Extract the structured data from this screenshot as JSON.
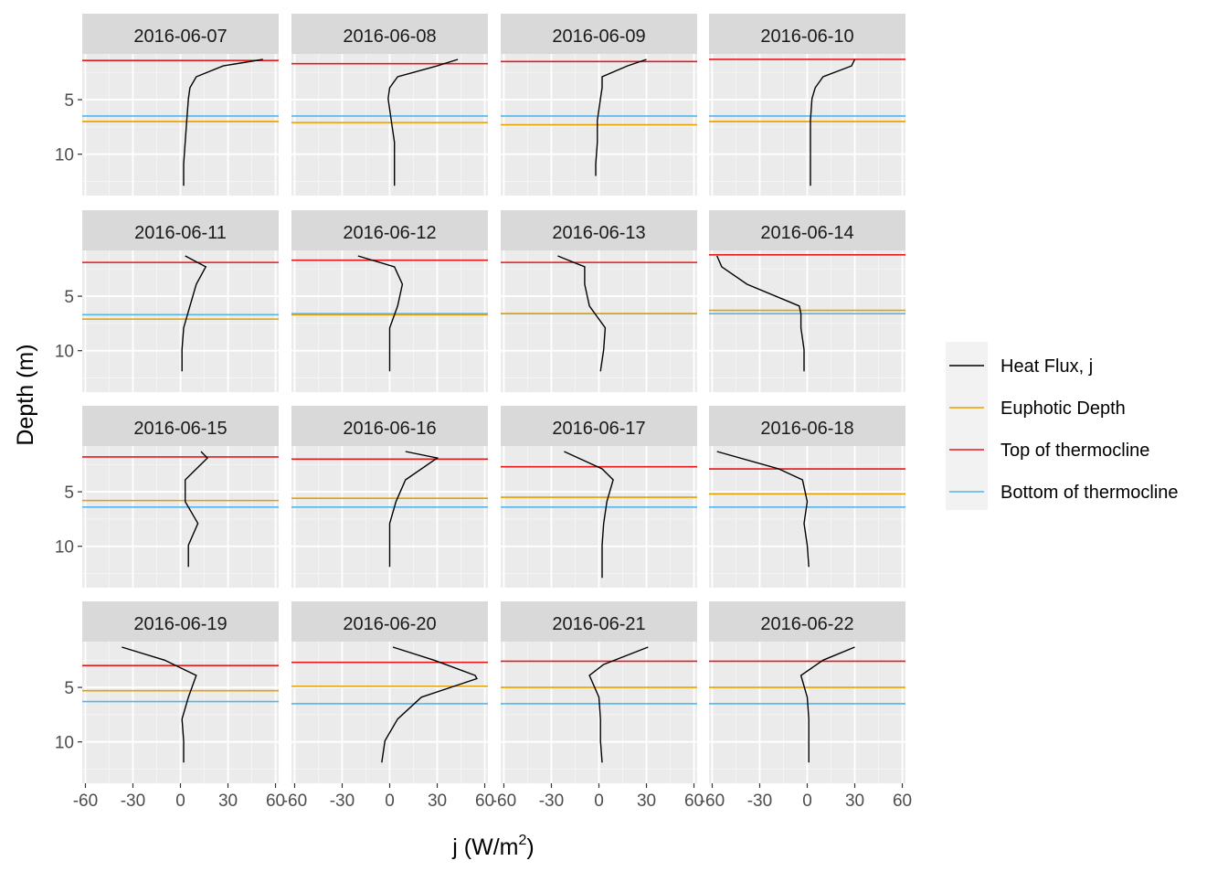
{
  "chart_data": {
    "type": "line",
    "xlabel_base": "j (W/m",
    "xlabel_sup": "2",
    "xlabel_tail": ")",
    "ylabel": "Depth (m)",
    "xlim": [
      -62,
      62
    ],
    "ylim": [
      0.8,
      13.8
    ],
    "y_reversed": true,
    "x_ticks": [
      -60,
      -30,
      0,
      30,
      60
    ],
    "x_tick_labels": [
      "-60",
      "-30",
      "0",
      "30",
      "60"
    ],
    "y_ticks": [
      5,
      10
    ],
    "y_tick_labels": [
      "5",
      "10"
    ],
    "grid": true,
    "facet_layout": "4 x 4",
    "legend": {
      "position": "right",
      "entries": [
        {
          "key": "heat_flux",
          "label": "Heat Flux, j",
          "color": "#000000"
        },
        {
          "key": "euphotic",
          "label": "Euphotic Depth",
          "color": "#E69F00"
        },
        {
          "key": "top",
          "label": "Top of thermocline",
          "color": "#E41A1C"
        },
        {
          "key": "bottom",
          "label": "Bottom of thermocline",
          "color": "#56B4E9"
        }
      ]
    },
    "facets": [
      {
        "date": "2016-06-07",
        "top": 1.4,
        "euphotic": 7.0,
        "bottom": 6.5,
        "depth": [
          1.3,
          1.9,
          2.9,
          3.9,
          4.9,
          6.9,
          8.9,
          10.9,
          12.9
        ],
        "j": [
          52,
          27,
          10,
          6,
          5,
          4,
          3,
          2,
          2
        ]
      },
      {
        "date": "2016-06-08",
        "top": 1.7,
        "euphotic": 7.1,
        "bottom": 6.5,
        "depth": [
          1.3,
          1.9,
          2.9,
          3.9,
          4.9,
          6.9,
          8.9,
          10.9,
          12.9
        ],
        "j": [
          43,
          30,
          5,
          0,
          -1,
          1,
          3,
          3,
          3
        ]
      },
      {
        "date": "2016-06-09",
        "top": 1.5,
        "euphotic": 7.3,
        "bottom": 6.5,
        "depth": [
          1.3,
          1.9,
          2.9,
          3.9,
          4.9,
          6.9,
          8.9,
          10.9,
          12.0
        ],
        "j": [
          30,
          18,
          2,
          2,
          1,
          -1,
          -1,
          -2,
          -2
        ]
      },
      {
        "date": "2016-06-10",
        "top": 1.3,
        "euphotic": 7.0,
        "bottom": 6.5,
        "depth": [
          1.3,
          1.9,
          2.9,
          3.9,
          4.9,
          6.9,
          8.9,
          10.9,
          12.9
        ],
        "j": [
          30,
          28,
          10,
          5,
          3,
          2,
          2,
          2,
          2
        ]
      },
      {
        "date": "2016-06-11",
        "top": 1.9,
        "euphotic": 7.1,
        "bottom": 6.7,
        "depth": [
          1.3,
          2.3,
          3.9,
          5.9,
          7.9,
          9.9,
          11.9
        ],
        "j": [
          3,
          16,
          10,
          6,
          2,
          1,
          1
        ]
      },
      {
        "date": "2016-06-12",
        "top": 1.7,
        "euphotic": 6.7,
        "bottom": 6.6,
        "depth": [
          1.3,
          2.3,
          3.9,
          5.9,
          7.9,
          9.9,
          11.9
        ],
        "j": [
          -20,
          3,
          8,
          5,
          0,
          0,
          0
        ]
      },
      {
        "date": "2016-06-13",
        "top": 1.9,
        "euphotic": 6.6,
        "bottom": 6.6,
        "depth": [
          1.3,
          2.3,
          3.9,
          5.9,
          7.9,
          9.9,
          11.9
        ],
        "j": [
          -26,
          -9,
          -9,
          -6,
          4,
          3,
          1
        ]
      },
      {
        "date": "2016-06-14",
        "top": 1.2,
        "euphotic": 6.3,
        "bottom": 6.6,
        "depth": [
          1.3,
          2.3,
          3.9,
          5.9,
          6.6,
          7.9,
          9.9,
          11.9
        ],
        "j": [
          -57,
          -54,
          -38,
          -5,
          -4,
          -4,
          -2,
          -2
        ]
      },
      {
        "date": "2016-06-15",
        "top": 1.8,
        "euphotic": 5.8,
        "bottom": 6.4,
        "depth": [
          1.3,
          1.9,
          3.9,
          5.9,
          7.9,
          9.9,
          11.9
        ],
        "j": [
          13,
          17,
          3,
          3,
          11,
          5,
          5
        ]
      },
      {
        "date": "2016-06-16",
        "top": 2.0,
        "euphotic": 5.6,
        "bottom": 6.4,
        "depth": [
          1.3,
          1.9,
          3.9,
          5.9,
          7.9,
          9.9,
          11.9
        ],
        "j": [
          10,
          30,
          10,
          4,
          0,
          0,
          0
        ]
      },
      {
        "date": "2016-06-17",
        "top": 2.7,
        "euphotic": 5.5,
        "bottom": 6.4,
        "depth": [
          1.3,
          2.9,
          3.9,
          5.9,
          7.9,
          9.9,
          12.9
        ],
        "j": [
          -22,
          2,
          9,
          5,
          3,
          2,
          2
        ]
      },
      {
        "date": "2016-06-18",
        "top": 2.9,
        "euphotic": 5.2,
        "bottom": 6.4,
        "depth": [
          1.3,
          2.9,
          3.9,
          5.9,
          7.9,
          9.9,
          11.9
        ],
        "j": [
          -57,
          -18,
          -3,
          0,
          -2,
          0,
          1
        ]
      },
      {
        "date": "2016-06-19",
        "top": 3.0,
        "euphotic": 5.3,
        "bottom": 6.3,
        "depth": [
          1.3,
          2.5,
          3.9,
          5.9,
          7.9,
          9.9,
          11.9
        ],
        "j": [
          -37,
          -10,
          10,
          5,
          1,
          2,
          2
        ]
      },
      {
        "date": "2016-06-20",
        "top": 2.7,
        "euphotic": 4.9,
        "bottom": 6.5,
        "depth": [
          1.3,
          2.5,
          3.9,
          4.2,
          5.9,
          7.9,
          9.9,
          11.9
        ],
        "j": [
          2,
          28,
          54,
          55,
          20,
          5,
          -3,
          -5
        ]
      },
      {
        "date": "2016-06-21",
        "top": 2.6,
        "euphotic": 5.0,
        "bottom": 6.5,
        "depth": [
          1.3,
          2.9,
          3.9,
          5.9,
          7.9,
          9.9,
          11.9
        ],
        "j": [
          31,
          3,
          -6,
          0,
          1,
          1,
          2
        ]
      },
      {
        "date": "2016-06-22",
        "top": 2.6,
        "euphotic": 5.0,
        "bottom": 6.5,
        "depth": [
          1.3,
          2.5,
          3.9,
          5.9,
          7.9,
          9.9,
          11.9
        ],
        "j": [
          30,
          10,
          -4,
          0,
          1,
          1,
          1
        ]
      }
    ]
  }
}
